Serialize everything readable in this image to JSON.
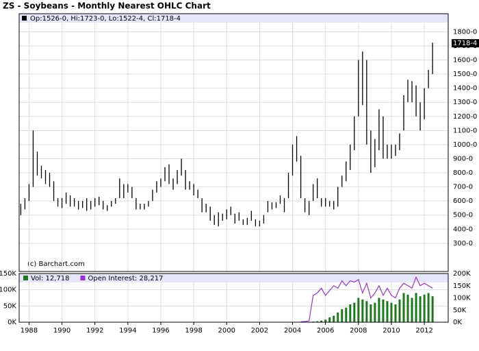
{
  "chart_data": [
    {
      "type": "ohlc",
      "title": "ZS - Soybeans - Monthly Nearest OHLC Chart",
      "header": "Op:1526-0, Hi:1723-0, Lo:1522-4, Cl:1718-4",
      "watermark": "(c) Barchart.com",
      "color": "#000000",
      "last_price": {
        "value": 1718.5,
        "label": "1718-4"
      },
      "x": [
        1987.5,
        1987.75,
        1988,
        1988.25,
        1988.5,
        1988.75,
        1989,
        1989.25,
        1989.5,
        1989.75,
        1990,
        1990.25,
        1990.5,
        1990.75,
        1991,
        1991.25,
        1991.5,
        1991.75,
        1992,
        1992.25,
        1992.5,
        1992.75,
        1993,
        1993.25,
        1993.5,
        1993.75,
        1994,
        1994.25,
        1994.5,
        1994.75,
        1995,
        1995.25,
        1995.5,
        1995.75,
        1996,
        1996.25,
        1996.5,
        1996.75,
        1997,
        1997.25,
        1997.5,
        1997.75,
        1998,
        1998.25,
        1998.5,
        1998.75,
        1999,
        1999.25,
        1999.5,
        1999.75,
        2000,
        2000.25,
        2000.5,
        2000.75,
        2001,
        2001.25,
        2001.5,
        2001.75,
        2002,
        2002.25,
        2002.5,
        2002.75,
        2003,
        2003.25,
        2003.5,
        2003.75,
        2004,
        2004.25,
        2004.5,
        2004.75,
        2005,
        2005.25,
        2005.5,
        2005.75,
        2006,
        2006.25,
        2006.5,
        2006.75,
        2007,
        2007.25,
        2007.5,
        2007.75,
        2008,
        2008.25,
        2008.5,
        2008.75,
        2009,
        2009.25,
        2009.5,
        2009.75,
        2010,
        2010.25,
        2010.5,
        2010.75,
        2011,
        2011.25,
        2011.5,
        2011.75,
        2012,
        2012.25,
        2012.5
      ],
      "high": [
        580,
        620,
        720,
        1100,
        950,
        850,
        820,
        800,
        740,
        620,
        620,
        660,
        640,
        620,
        600,
        600,
        620,
        600,
        620,
        630,
        600,
        570,
        600,
        620,
        760,
        720,
        720,
        700,
        620,
        580,
        580,
        600,
        680,
        740,
        760,
        840,
        860,
        760,
        820,
        900,
        820,
        740,
        720,
        680,
        620,
        580,
        560,
        500,
        520,
        510,
        540,
        560,
        510,
        520,
        470,
        480,
        530,
        470,
        460,
        500,
        600,
        590,
        590,
        640,
        620,
        800,
        1000,
        1060,
        920,
        620,
        600,
        720,
        760,
        620,
        620,
        600,
        600,
        700,
        780,
        880,
        1000,
        1200,
        1600,
        1660,
        1600,
        1100,
        1040,
        1250,
        1200,
        1000,
        1000,
        1000,
        1080,
        1350,
        1460,
        1450,
        1420,
        1300,
        1400,
        1530,
        1723
      ],
      "low": [
        500,
        540,
        600,
        700,
        780,
        760,
        720,
        700,
        600,
        560,
        550,
        580,
        560,
        560,
        540,
        550,
        530,
        540,
        560,
        570,
        540,
        530,
        560,
        580,
        620,
        620,
        660,
        620,
        540,
        540,
        540,
        560,
        600,
        660,
        700,
        740,
        720,
        680,
        720,
        780,
        680,
        680,
        640,
        620,
        520,
        520,
        460,
        430,
        420,
        460,
        470,
        500,
        440,
        460,
        430,
        430,
        460,
        420,
        420,
        440,
        520,
        540,
        550,
        580,
        520,
        620,
        780,
        880,
        620,
        520,
        500,
        600,
        620,
        560,
        560,
        560,
        540,
        560,
        700,
        740,
        820,
        960,
        1200,
        1280,
        1000,
        800,
        840,
        960,
        900,
        900,
        900,
        920,
        960,
        1100,
        1300,
        1300,
        1200,
        1100,
        1180,
        1400,
        1500
      ],
      "xlim": [
        1987.4,
        2013.45
      ],
      "ylim": [
        100,
        1865
      ],
      "yticks": [
        {
          "value": 1800,
          "label": "1800-0"
        },
        {
          "value": 1700,
          "label": "1700-0"
        },
        {
          "value": 1600,
          "label": "1600-0"
        },
        {
          "value": 1500,
          "label": "1500-0"
        },
        {
          "value": 1400,
          "label": "1400-0"
        },
        {
          "value": 1300,
          "label": "1300-0"
        },
        {
          "value": 1200,
          "label": "1200-0"
        },
        {
          "value": 1100,
          "label": "1100-0"
        },
        {
          "value": 1000,
          "label": "1000-0"
        },
        {
          "value": 900,
          "label": "900-0"
        },
        {
          "value": 800,
          "label": "800-0"
        },
        {
          "value": 700,
          "label": "700-0"
        },
        {
          "value": 600,
          "label": "600-0"
        },
        {
          "value": 500,
          "label": "500-0"
        },
        {
          "value": 400,
          "label": "400-0"
        },
        {
          "value": 300,
          "label": "300-0"
        }
      ],
      "grid": true
    },
    {
      "type": "volume",
      "x": [
        2004.5,
        2004.75,
        2005,
        2005.25,
        2005.5,
        2005.75,
        2006,
        2006.25,
        2006.5,
        2006.75,
        2007,
        2007.25,
        2007.5,
        2007.75,
        2008,
        2008.25,
        2008.5,
        2008.75,
        2009,
        2009.25,
        2009.5,
        2009.75,
        2010,
        2010.25,
        2010.5,
        2010.75,
        2011,
        2011.25,
        2011.5,
        2011.75,
        2012,
        2012.25,
        2012.5
      ],
      "series": [
        {
          "name": "Vol: 12,718",
          "color": "#1a7a1a",
          "values": [
            1000,
            1000,
            1000,
            2000,
            3000,
            5000,
            8000,
            15000,
            20000,
            30000,
            40000,
            45000,
            55000,
            60000,
            75000,
            70000,
            65000,
            55000,
            60000,
            75000,
            70000,
            65000,
            60000,
            55000,
            70000,
            90000,
            85000,
            75000,
            90000,
            80000,
            85000,
            90000,
            80000
          ]
        },
        {
          "name": "Open Interest: 28,217",
          "color": "#9b30d9",
          "axis": "y2",
          "values": [
            2000,
            3000,
            5000,
            110000,
            120000,
            140000,
            110000,
            130000,
            150000,
            140000,
            170000,
            150000,
            170000,
            165000,
            175000,
            120000,
            160000,
            100000,
            120000,
            150000,
            110000,
            140000,
            110000,
            100000,
            140000,
            160000,
            150000,
            140000,
            185000,
            150000,
            160000,
            150000,
            140000
          ]
        }
      ],
      "xlim": [
        1987.4,
        2013.45
      ],
      "xticks": [
        1988,
        1990,
        1992,
        1994,
        1996,
        1998,
        2000,
        2002,
        2004,
        2006,
        2008,
        2010,
        2012
      ],
      "ylim": [
        0,
        150000
      ],
      "yticks": [
        {
          "value": 150000,
          "label": "150K"
        },
        {
          "value": 100000,
          "label": "100K"
        },
        {
          "value": 50000,
          "label": "50K"
        },
        {
          "value": 0,
          "label": "0K"
        }
      ],
      "y2lim": [
        0,
        200000
      ],
      "y2ticks": [
        {
          "value": 200000,
          "label": "200K"
        },
        {
          "value": 150000,
          "label": "150K"
        },
        {
          "value": 100000,
          "label": "100K"
        },
        {
          "value": 50000,
          "label": "50K"
        },
        {
          "value": 0,
          "label": "0K"
        }
      ],
      "grid": true
    }
  ]
}
